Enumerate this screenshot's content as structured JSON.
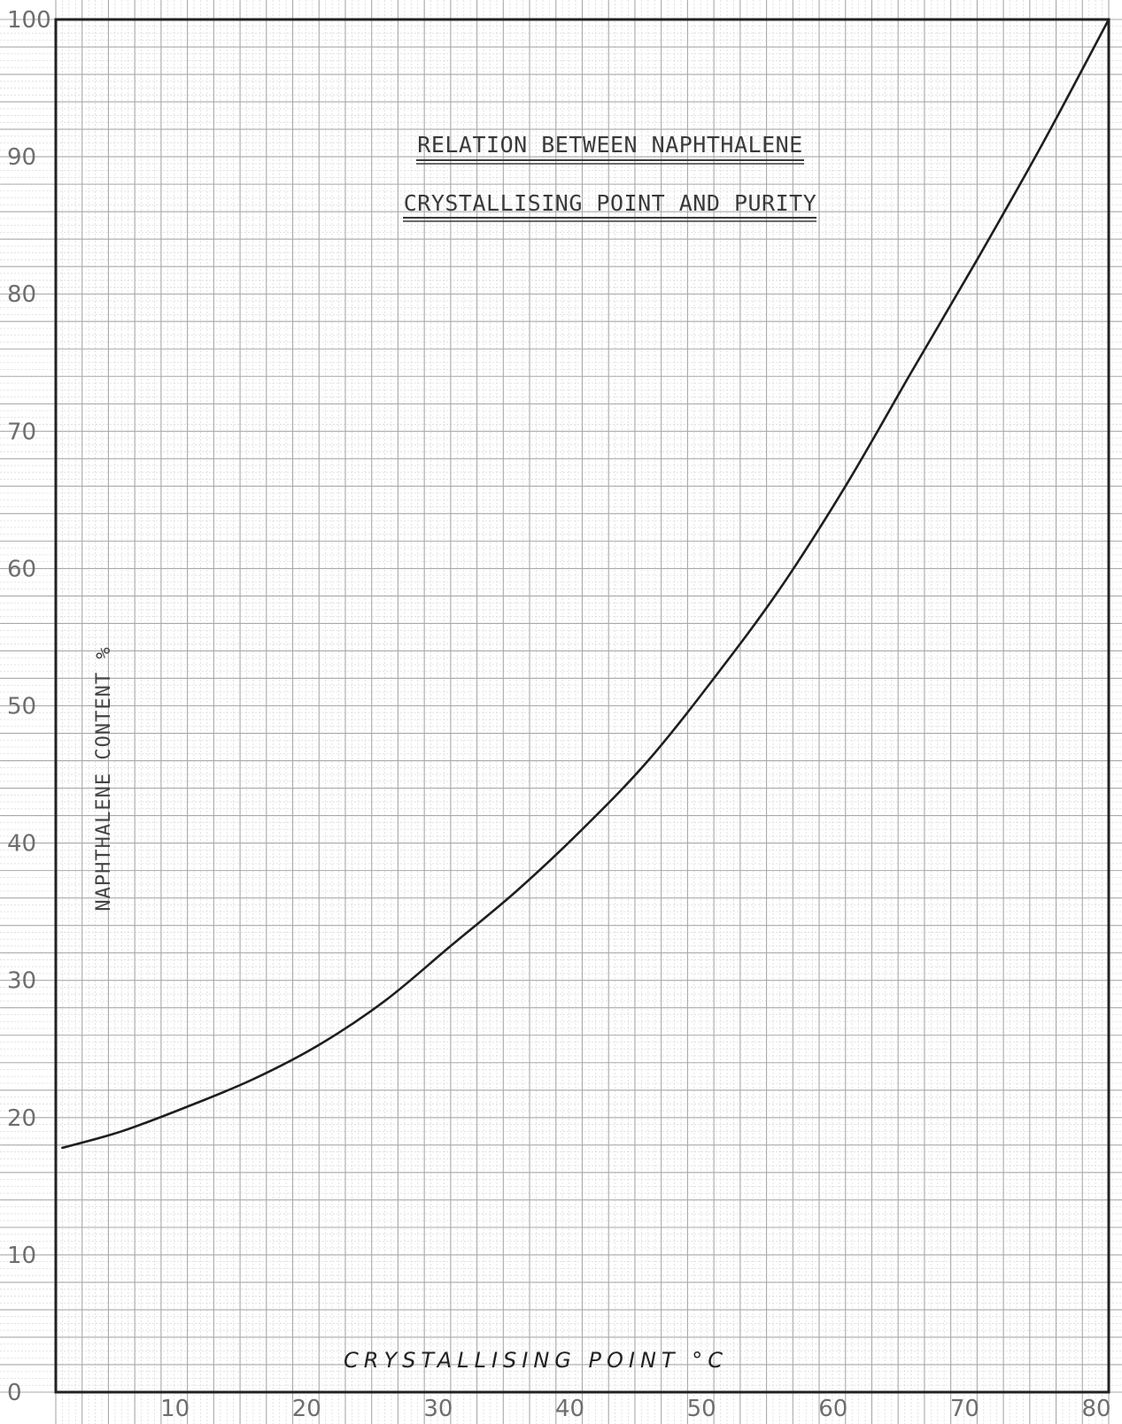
{
  "chart_data": {
    "type": "line",
    "title_lines": [
      "RELATION BETWEEN NAPHTHALENE",
      "CRYSTALLISING POINT AND PURITY"
    ],
    "xlabel": "CRYSTALLISING POINT °C",
    "ylabel": "NAPHTHALENE CONTENT %",
    "xlim": [
      0,
      80
    ],
    "ylim": [
      0,
      100
    ],
    "x_ticks": [
      10,
      20,
      30,
      40,
      50,
      60,
      70,
      80
    ],
    "x_tick_labels": [
      "10",
      "20",
      "30",
      "40",
      "50",
      "60",
      "70",
      "80"
    ],
    "y_ticks": [
      0,
      10,
      20,
      30,
      40,
      50,
      60,
      70,
      80,
      90,
      100
    ],
    "y_tick_labels": [
      "0",
      "10",
      "20",
      "30",
      "40",
      "50",
      "60",
      "70",
      "80",
      "90",
      "100"
    ],
    "grid": true,
    "series": [
      {
        "x": [
          0.5,
          5,
          10,
          15,
          20,
          25,
          30,
          35,
          40,
          45,
          50,
          55,
          60,
          65,
          70,
          75,
          80
        ],
        "y": [
          17.8,
          19.0,
          20.8,
          22.8,
          25.3,
          28.5,
          32.5,
          36.5,
          41.0,
          46.0,
          52.0,
          58.5,
          66.0,
          74.3,
          82.5,
          91.0,
          100.0
        ]
      }
    ]
  }
}
